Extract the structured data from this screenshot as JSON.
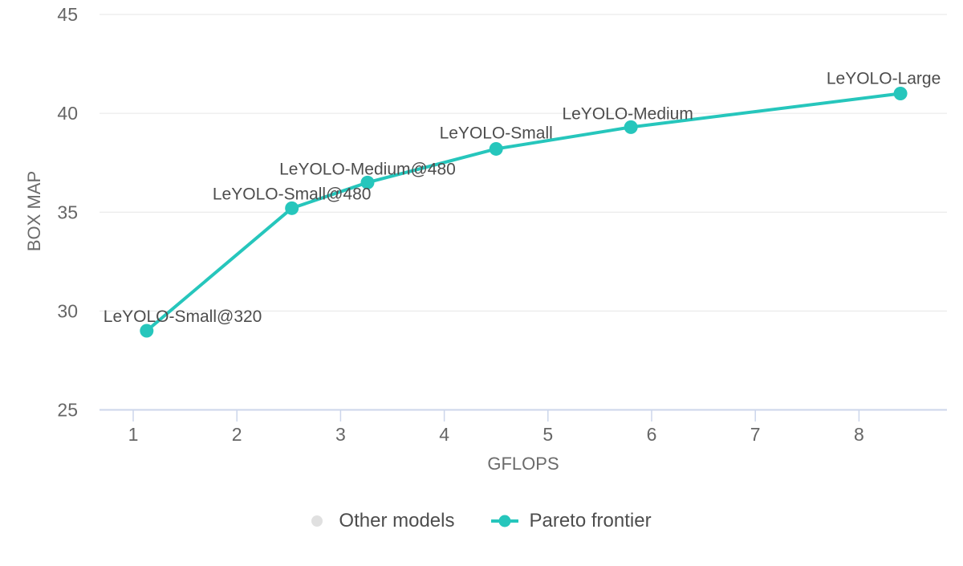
{
  "chart_data": {
    "type": "line",
    "title": "",
    "xlabel": "GFLOPS",
    "ylabel": "BOX MAP",
    "x_ticks": [
      1,
      2,
      3,
      4,
      5,
      6,
      7,
      8
    ],
    "y_ticks": [
      25,
      30,
      35,
      40,
      45
    ],
    "xlim": [
      0.68,
      8.85
    ],
    "ylim": [
      25,
      45
    ],
    "grid": "horizontal-only",
    "legend_position": "bottom-center",
    "series": [
      {
        "name": "Other models",
        "type": "scatter",
        "color": "#e0e0e0",
        "points": []
      },
      {
        "name": "Pareto frontier",
        "type": "line+markers",
        "color": "#26c6bc",
        "points": [
          {
            "label": "LeYOLO-Small@320",
            "x": 1.13,
            "y": 29.0,
            "label_anchor": "start",
            "label_dx": -54,
            "label_dy": -11
          },
          {
            "label": "LeYOLO-Small@480",
            "x": 2.53,
            "y": 35.2,
            "label_anchor": "middle",
            "label_dx": 0,
            "label_dy": -11
          },
          {
            "label": "LeYOLO-Medium@480",
            "x": 3.26,
            "y": 36.5,
            "label_anchor": "middle",
            "label_dx": 0,
            "label_dy": -10
          },
          {
            "label": "LeYOLO-Small",
            "x": 4.5,
            "y": 38.2,
            "label_anchor": "middle",
            "label_dx": 0,
            "label_dy": -13
          },
          {
            "label": "LeYOLO-Medium",
            "x": 5.8,
            "y": 39.3,
            "label_anchor": "middle",
            "label_dx": -4,
            "label_dy": -10
          },
          {
            "label": "LeYOLO-Large",
            "x": 8.4,
            "y": 41.0,
            "label_anchor": "middle",
            "label_dx": -21,
            "label_dy": -12
          }
        ]
      }
    ]
  },
  "style": {
    "accent_color": "#26c6bc",
    "other_models_color": "#e0e0e0",
    "axis_color": "#ccd6eb",
    "grid_color": "#e6e6e6"
  }
}
